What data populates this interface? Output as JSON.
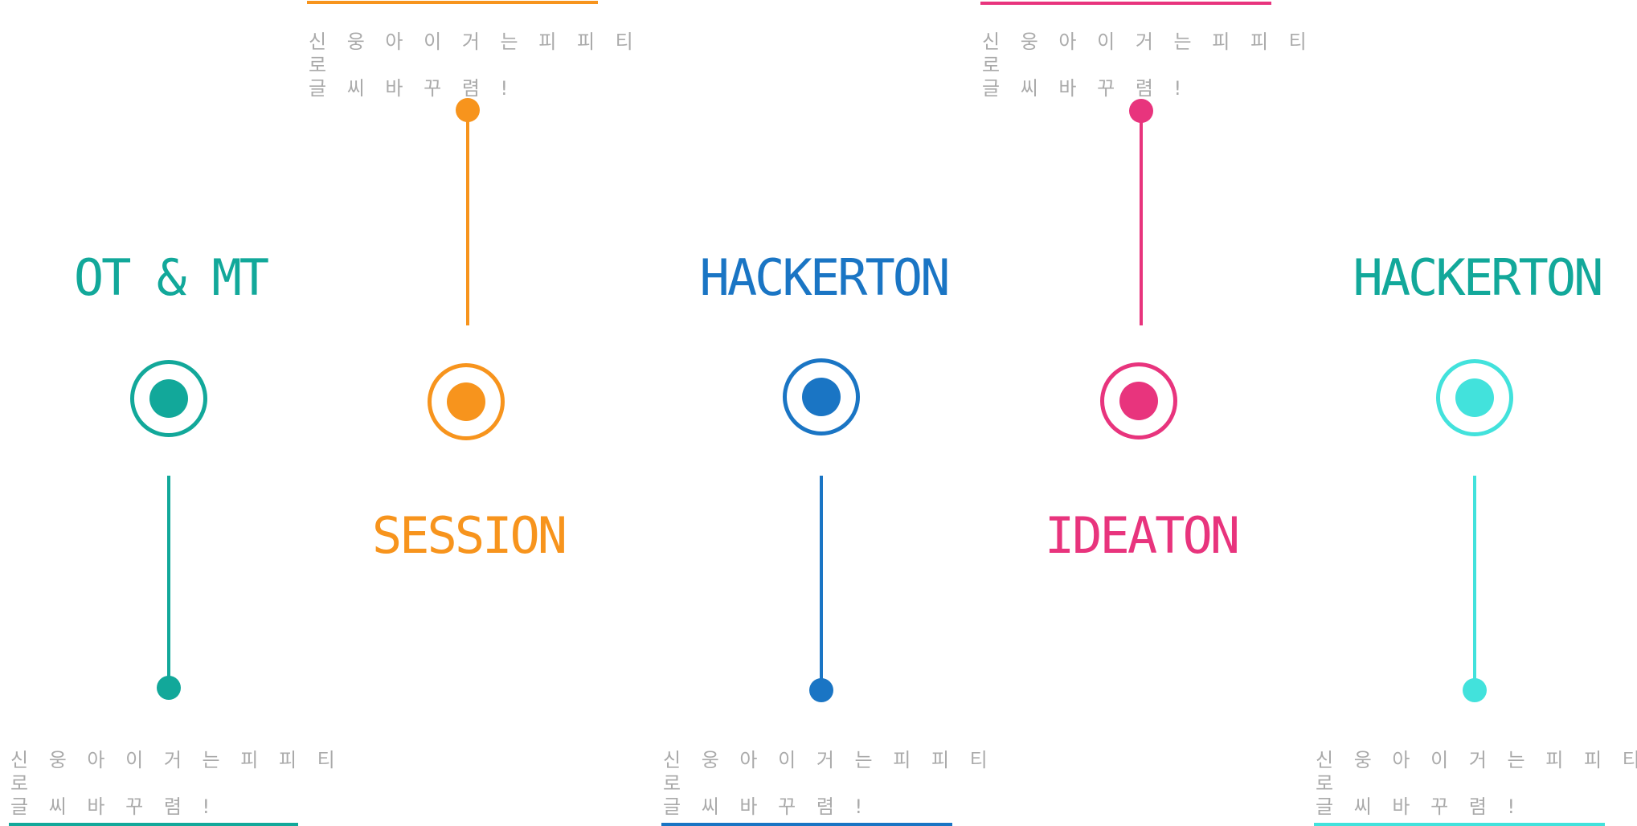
{
  "milestones": [
    {
      "title": "OT & MT",
      "note": "신 웅 아   이 거 는   피 피 티 로\n글 씨 바 꾸 렴 !",
      "color": "#12a89a"
    },
    {
      "title": "SESSION",
      "note": "신 웅 아   이 거 는   피 피 티 로\n글 씨 바 꾸 렴 !",
      "color": "#f7941d"
    },
    {
      "title": "HACKERTON",
      "note": "신 웅 아   이 거 는   피 피 티 로\n글 씨 바 꾸 렴 !",
      "color": "#1a75c4"
    },
    {
      "title": "IDEATON",
      "note": "신 웅 아   이 거 는   피 피 티 로\n글 씨 바 꾸 렴 !",
      "color": "#e8347d"
    },
    {
      "title": "HACKERTON",
      "note": "신 웅 아   이 거 는   피 피 티 로\n글 씨 바 꾸 렴 !",
      "color": "#42e2dc",
      "title_color": "#12a89a"
    }
  ]
}
